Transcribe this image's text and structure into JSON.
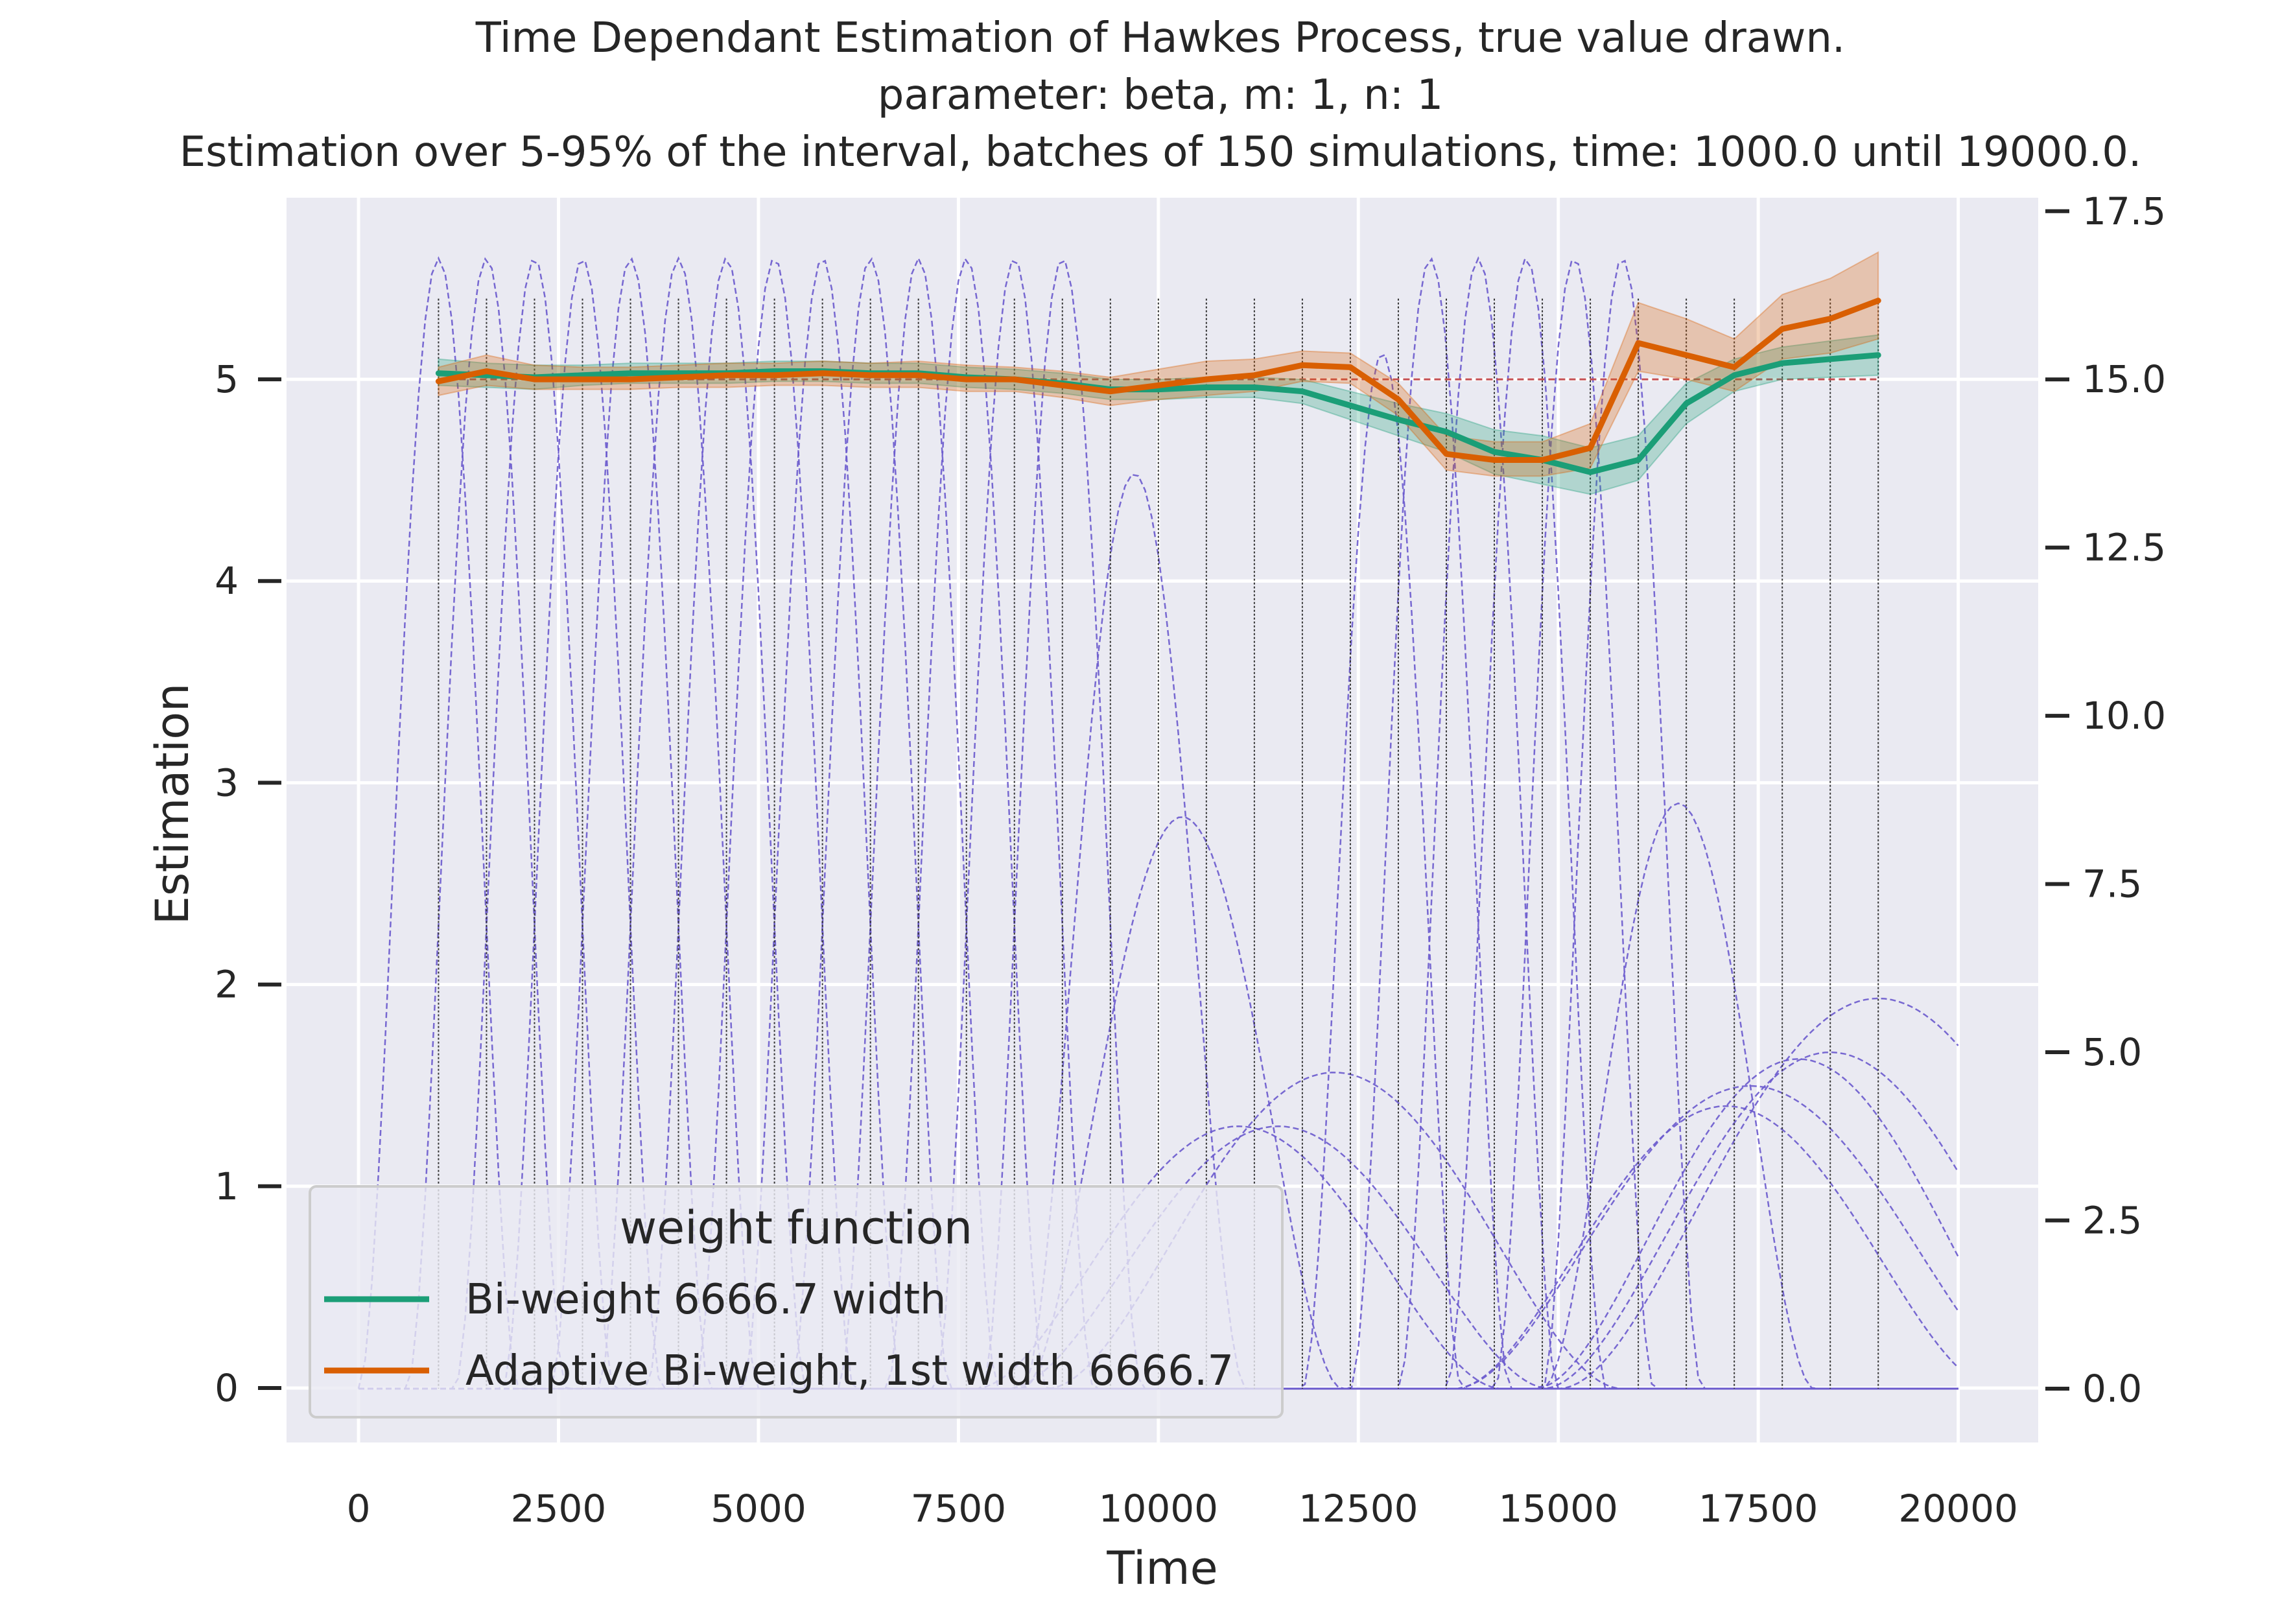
{
  "chart_data": {
    "type": "line",
    "title_lines": [
      "Time Dependant Estimation of Hawkes Process, true value drawn.",
      "parameter: beta, m: 1, n: 1",
      "Estimation over 5-95% of the interval, batches of 150 simulations, time: 1000.0 until 19000.0."
    ],
    "xlabel": "Time",
    "ylabel": "Estimation",
    "xlim": [
      -900,
      21000
    ],
    "ylim": [
      -0.27,
      5.9
    ],
    "y2lim": [
      -0.8,
      17.7
    ],
    "xticks": [
      0,
      2500,
      5000,
      7500,
      10000,
      12500,
      15000,
      17500,
      20000
    ],
    "xtick_labels": [
      "0",
      "2500",
      "5000",
      "7500",
      "10000",
      "12500",
      "15000",
      "17500",
      "20000"
    ],
    "yticks": [
      0,
      1,
      2,
      3,
      4,
      5
    ],
    "ytick_labels": [
      "0",
      "1",
      "2",
      "3",
      "4",
      "5"
    ],
    "y2ticks": [
      0.0,
      2.5,
      5.0,
      7.5,
      10.0,
      12.5,
      15.0,
      17.5
    ],
    "y2tick_labels": [
      "0.0",
      "2.5",
      "5.0",
      "7.5",
      "10.0",
      "12.5",
      "15.0",
      "17.5"
    ],
    "grid": true,
    "true_value": {
      "y": 5.0,
      "x_range": [
        1000,
        19000
      ],
      "color": "#c44e52"
    },
    "colors": {
      "background": "#eaeaf2",
      "grid": "#ffffff",
      "kernel": "#6a5acd",
      "vline": "#333333"
    },
    "x": [
      1000,
      1600,
      2200,
      2800,
      3400,
      4000,
      4600,
      5200,
      5800,
      6400,
      7000,
      7600,
      8200,
      8800,
      9400,
      10000,
      10600,
      11200,
      11800,
      12400,
      13000,
      13600,
      14200,
      14800,
      15400,
      16000,
      16600,
      17200,
      17800,
      18400,
      19000
    ],
    "series": [
      {
        "name": "Bi-weight 6666.7 width",
        "color": "#1b9e77",
        "values": [
          5.03,
          5.02,
          5.01,
          5.02,
          5.03,
          5.03,
          5.03,
          5.04,
          5.04,
          5.03,
          5.03,
          5.01,
          5.0,
          4.98,
          4.95,
          4.95,
          4.96,
          4.96,
          4.94,
          4.87,
          4.8,
          4.74,
          4.64,
          4.6,
          4.54,
          4.6,
          4.88,
          5.02,
          5.08,
          5.1,
          5.12
        ],
        "lower": [
          4.97,
          4.96,
          4.95,
          4.97,
          4.98,
          4.98,
          4.98,
          4.99,
          4.99,
          4.98,
          4.98,
          4.96,
          4.95,
          4.93,
          4.9,
          4.9,
          4.91,
          4.91,
          4.88,
          4.8,
          4.72,
          4.64,
          4.53,
          4.48,
          4.43,
          4.5,
          4.78,
          4.94,
          5.0,
          5.01,
          5.02
        ],
        "upper": [
          5.1,
          5.08,
          5.07,
          5.07,
          5.08,
          5.08,
          5.08,
          5.09,
          5.09,
          5.08,
          5.08,
          5.06,
          5.05,
          5.03,
          5.0,
          5.0,
          5.01,
          5.01,
          5.0,
          4.94,
          4.88,
          4.83,
          4.75,
          4.72,
          4.66,
          4.72,
          4.98,
          5.1,
          5.16,
          5.19,
          5.22
        ]
      },
      {
        "name": "Adaptive Bi-weight, 1st width 6666.7",
        "color": "#d95f02",
        "values": [
          4.99,
          5.04,
          5.0,
          5.0,
          5.0,
          5.01,
          5.02,
          5.02,
          5.03,
          5.02,
          5.02,
          5.0,
          5.0,
          4.97,
          4.94,
          4.97,
          5.0,
          5.02,
          5.07,
          5.06,
          4.9,
          4.63,
          4.6,
          4.6,
          4.66,
          5.18,
          5.12,
          5.06,
          5.25,
          5.3,
          5.39
        ],
        "lower": [
          4.92,
          4.97,
          4.95,
          4.95,
          4.95,
          4.96,
          4.96,
          4.97,
          4.97,
          4.96,
          4.96,
          4.94,
          4.94,
          4.91,
          4.87,
          4.9,
          4.92,
          4.94,
          4.99,
          4.98,
          4.82,
          4.55,
          4.52,
          4.52,
          4.56,
          5.04,
          5.0,
          4.94,
          5.1,
          5.13,
          5.2
        ],
        "upper": [
          5.06,
          5.12,
          5.07,
          5.06,
          5.06,
          5.07,
          5.08,
          5.08,
          5.09,
          5.08,
          5.09,
          5.07,
          5.06,
          5.04,
          5.01,
          5.05,
          5.09,
          5.1,
          5.14,
          5.13,
          4.98,
          4.72,
          4.69,
          4.69,
          4.78,
          5.38,
          5.3,
          5.2,
          5.42,
          5.5,
          5.63
        ]
      }
    ],
    "kernels": [
      {
        "center": 1000,
        "half_width": 1000,
        "height": 16.8
      },
      {
        "center": 1600,
        "half_width": 1000,
        "height": 16.8
      },
      {
        "center": 2200,
        "half_width": 1000,
        "height": 16.8
      },
      {
        "center": 2800,
        "half_width": 1000,
        "height": 16.8
      },
      {
        "center": 3400,
        "half_width": 1000,
        "height": 16.8
      },
      {
        "center": 4000,
        "half_width": 1000,
        "height": 16.8
      },
      {
        "center": 4600,
        "half_width": 1000,
        "height": 16.8
      },
      {
        "center": 5200,
        "half_width": 1000,
        "height": 16.8
      },
      {
        "center": 5800,
        "half_width": 1000,
        "height": 16.8
      },
      {
        "center": 6400,
        "half_width": 1000,
        "height": 16.8
      },
      {
        "center": 7000,
        "half_width": 1000,
        "height": 16.8
      },
      {
        "center": 7600,
        "half_width": 1000,
        "height": 16.8
      },
      {
        "center": 8200,
        "half_width": 1000,
        "height": 16.8
      },
      {
        "center": 8800,
        "half_width": 1000,
        "height": 16.8
      },
      {
        "center": 9700,
        "half_width": 1400,
        "height": 13.6
      },
      {
        "center": 10300,
        "half_width": 2000,
        "height": 8.5
      },
      {
        "center": 11000,
        "half_width": 3300,
        "height": 3.9
      },
      {
        "center": 11500,
        "half_width": 3400,
        "height": 3.9
      },
      {
        "center": 12200,
        "half_width": 3600,
        "height": 4.7
      },
      {
        "center": 12800,
        "half_width": 1000,
        "height": 15.4
      },
      {
        "center": 13400,
        "half_width": 1000,
        "height": 16.8
      },
      {
        "center": 14000,
        "half_width": 1000,
        "height": 16.8
      },
      {
        "center": 14600,
        "half_width": 1000,
        "height": 16.8
      },
      {
        "center": 15200,
        "half_width": 1000,
        "height": 16.8
      },
      {
        "center": 15800,
        "half_width": 1000,
        "height": 16.8
      },
      {
        "center": 16500,
        "half_width": 1700,
        "height": 8.7
      },
      {
        "center": 17100,
        "half_width": 3400,
        "height": 4.2
      },
      {
        "center": 17400,
        "half_width": 3700,
        "height": 4.5
      },
      {
        "center": 18000,
        "half_width": 3300,
        "height": 4.9
      },
      {
        "center": 18400,
        "half_width": 3600,
        "height": 5.0
      },
      {
        "center": 19000,
        "half_width": 4000,
        "height": 5.8
      }
    ],
    "legend": {
      "title": "weight function",
      "position": "lower left",
      "entries": [
        "Bi-weight 6666.7 width",
        "Adaptive Bi-weight, 1st width 6666.7"
      ]
    }
  }
}
